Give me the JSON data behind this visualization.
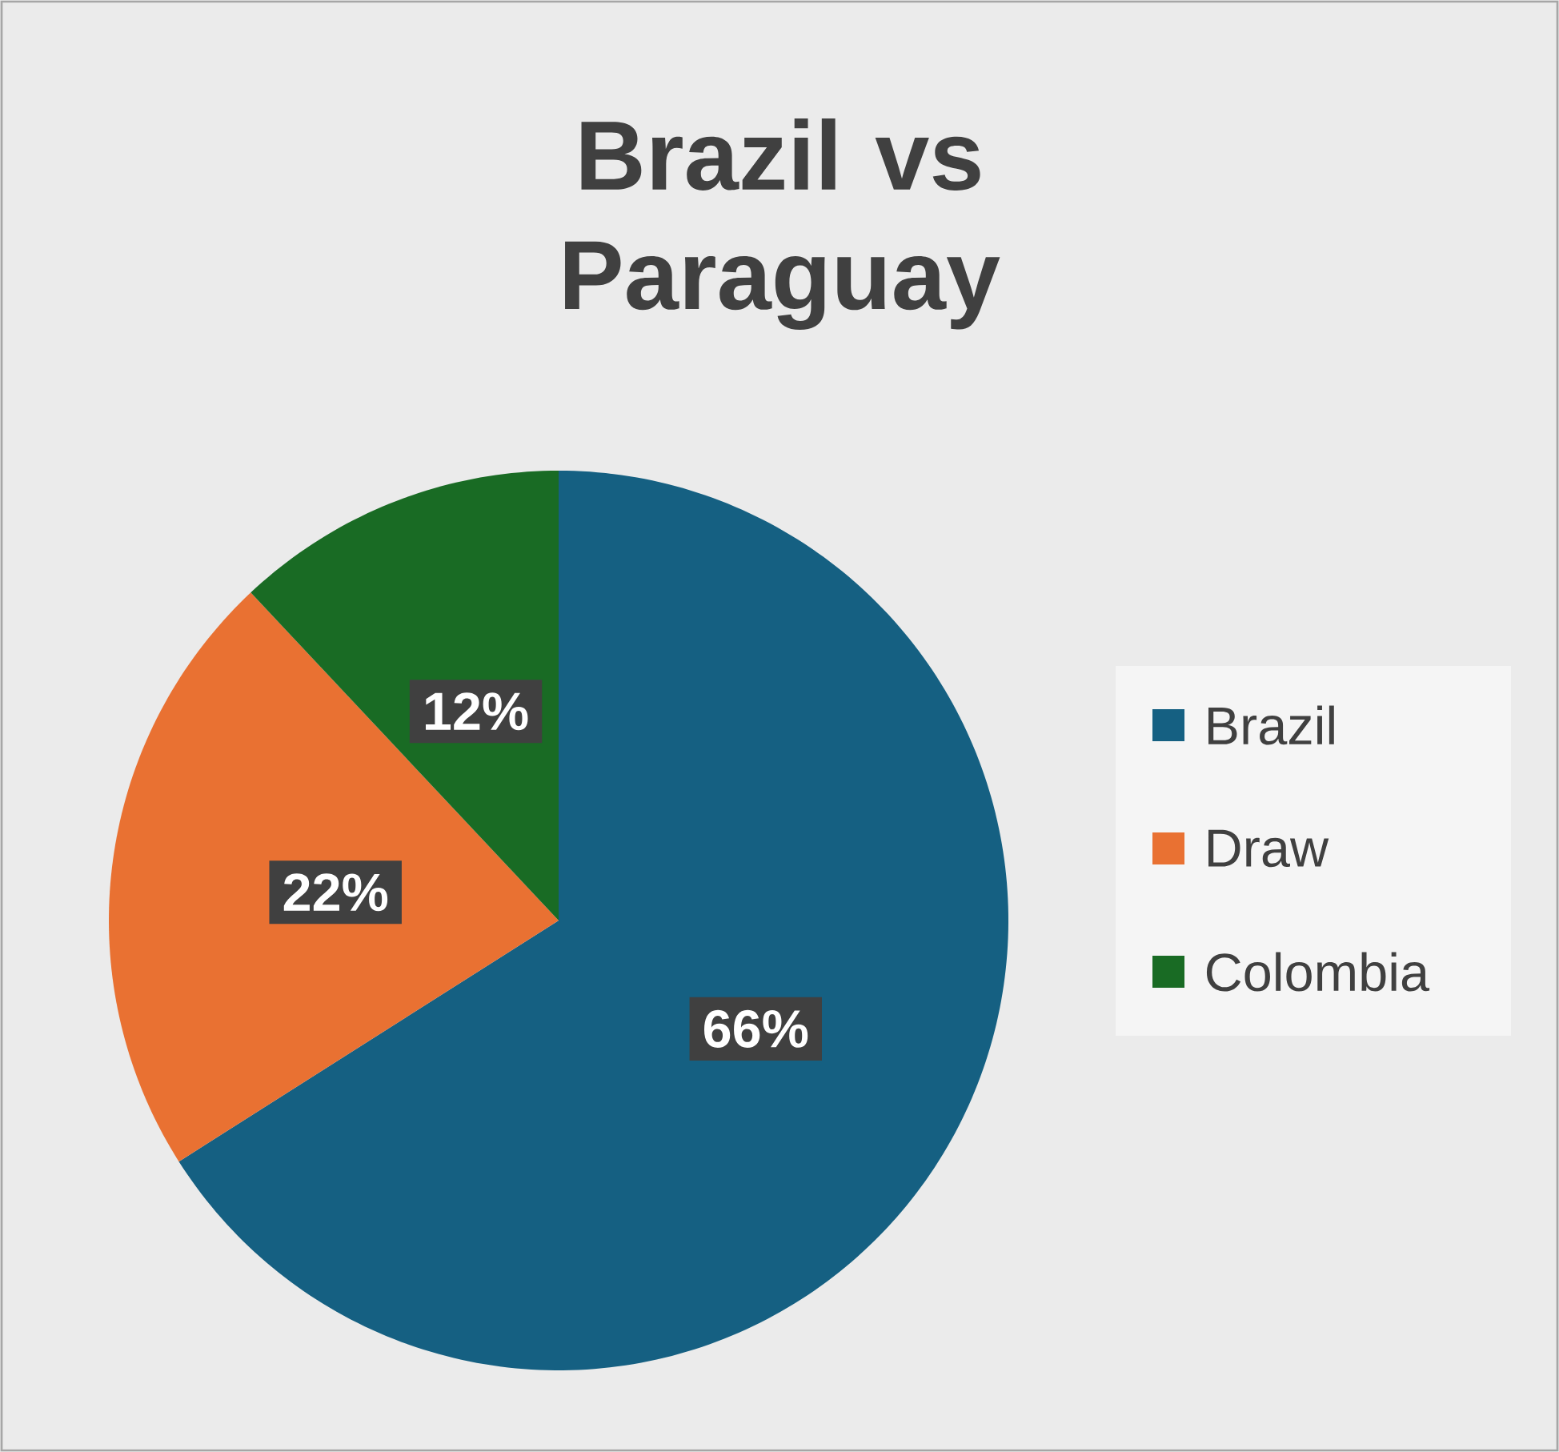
{
  "chart_data": {
    "type": "pie",
    "title": "Brazil vs Paraguay",
    "categories": [
      "Brazil",
      "Draw",
      "Colombia"
    ],
    "values": [
      66,
      22,
      12
    ],
    "colors": [
      "#156082",
      "#e97132",
      "#196b24"
    ],
    "value_labels": [
      "66%",
      "22%",
      "12%"
    ],
    "legend": "right"
  }
}
